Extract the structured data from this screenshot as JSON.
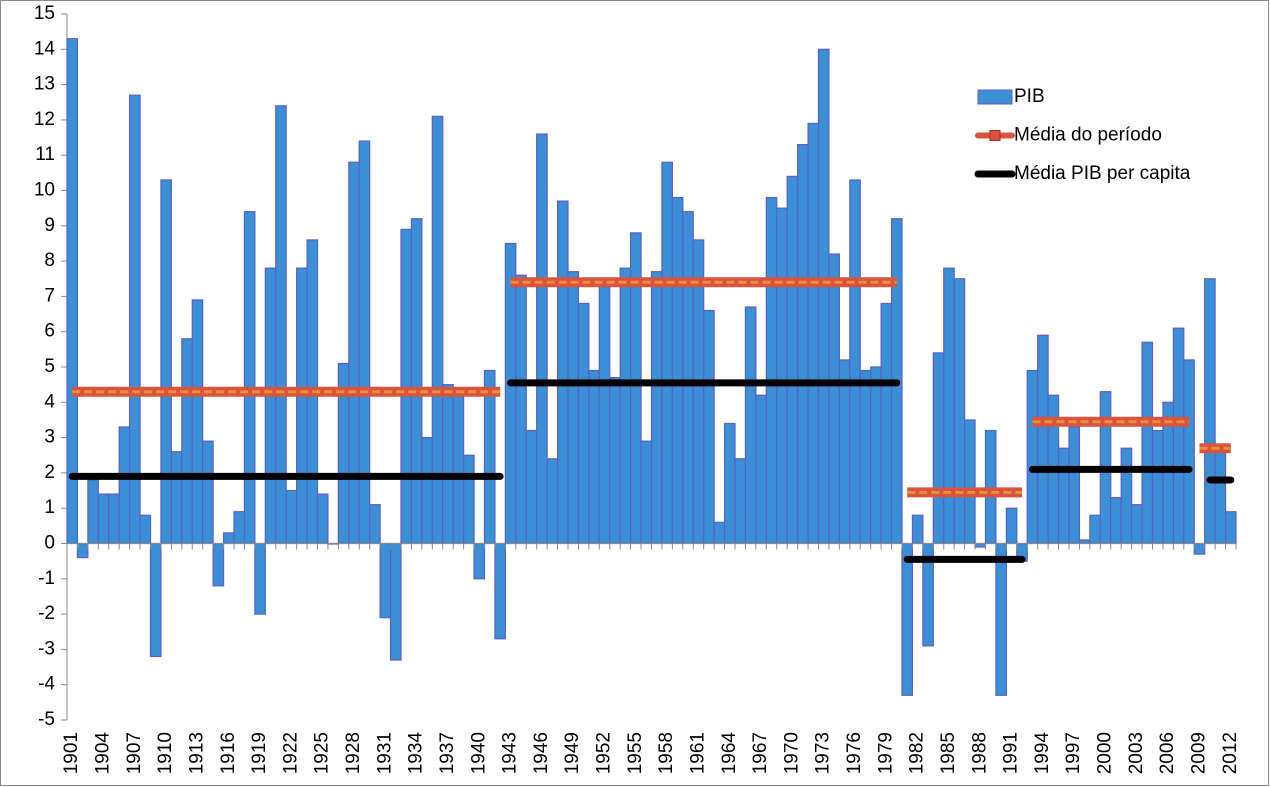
{
  "chart_data": {
    "type": "bar",
    "categories": [
      "1901",
      null,
      null,
      "1904",
      null,
      null,
      "1907",
      null,
      null,
      "1910",
      null,
      null,
      "1913",
      null,
      null,
      "1916",
      null,
      null,
      "1919",
      null,
      null,
      "1922",
      null,
      null,
      "1925",
      null,
      null,
      "1928",
      null,
      null,
      "1931",
      null,
      null,
      "1934",
      null,
      null,
      "1937",
      null,
      null,
      "1940",
      null,
      null,
      "1943",
      null,
      null,
      "1946",
      null,
      null,
      "1949",
      null,
      null,
      "1952",
      null,
      null,
      "1955",
      null,
      null,
      "1958",
      null,
      null,
      "1961",
      null,
      null,
      "1964",
      null,
      null,
      "1967",
      null,
      null,
      "1970",
      null,
      null,
      "1973",
      null,
      null,
      "1976",
      null,
      null,
      "1979",
      null,
      null,
      "1982",
      null,
      null,
      "1985",
      null,
      null,
      "1988",
      null,
      null,
      "1991",
      null,
      null,
      "1994",
      null,
      null,
      "1997",
      null,
      null,
      "2000",
      null,
      null,
      "2003",
      null,
      null,
      "2006",
      null,
      null,
      "2009",
      null,
      null,
      "2012"
    ],
    "series": [
      {
        "name": "PIB",
        "type": "bar",
        "color": "#3b8fd4",
        "values": [
          14.3,
          -0.4,
          1.8,
          1.4,
          1.4,
          3.3,
          12.7,
          0.8,
          -3.2,
          10.3,
          2.6,
          5.8,
          6.9,
          2.9,
          -1.2,
          0.3,
          0.9,
          9.4,
          -2.0,
          7.8,
          12.4,
          1.5,
          7.8,
          8.6,
          1.4,
          0.0,
          5.1,
          10.8,
          11.4,
          1.1,
          -2.1,
          -3.3,
          8.9,
          9.2,
          3.0,
          12.1,
          4.5,
          4.4,
          2.5,
          -1.0,
          4.9,
          -2.7,
          8.5,
          7.6,
          3.2,
          11.6,
          2.4,
          9.7,
          7.7,
          6.8,
          4.9,
          7.3,
          4.7,
          7.8,
          8.8,
          2.9,
          7.7,
          10.8,
          9.8,
          9.4,
          8.6,
          6.6,
          0.6,
          3.4,
          2.4,
          6.7,
          4.2,
          9.8,
          9.5,
          10.4,
          11.3,
          11.9,
          14.0,
          8.2,
          5.2,
          10.3,
          4.9,
          5.0,
          6.8,
          9.2,
          -4.3,
          0.8,
          -2.9,
          5.4,
          7.8,
          7.5,
          3.5,
          -0.1,
          3.2,
          -4.3,
          1.0,
          -0.5,
          4.9,
          5.9,
          4.2,
          2.7,
          3.3,
          0.1,
          0.8,
          4.3,
          1.3,
          2.7,
          1.1,
          5.7,
          3.2,
          4.0,
          6.1,
          5.2,
          -0.3,
          7.5,
          2.7,
          0.9
        ]
      },
      {
        "name": "Média do período",
        "type": "line",
        "color": "#d9533f",
        "marker": "square",
        "values": [
          4.3,
          4.3,
          4.3,
          4.3,
          4.3,
          4.3,
          4.3,
          4.3,
          4.3,
          4.3,
          4.3,
          4.3,
          4.3,
          4.3,
          4.3,
          4.3,
          4.3,
          4.3,
          4.3,
          4.3,
          4.3,
          4.3,
          4.3,
          4.3,
          4.3,
          4.3,
          4.3,
          4.3,
          4.3,
          4.3,
          4.3,
          4.3,
          4.3,
          4.3,
          4.3,
          4.3,
          4.3,
          4.3,
          4.3,
          4.3,
          4.3,
          4.3,
          7.4,
          7.4,
          7.4,
          7.4,
          7.4,
          7.4,
          7.4,
          7.4,
          7.4,
          7.4,
          7.4,
          7.4,
          7.4,
          7.4,
          7.4,
          7.4,
          7.4,
          7.4,
          7.4,
          7.4,
          7.4,
          7.4,
          7.4,
          7.4,
          7.4,
          7.4,
          7.4,
          7.4,
          7.4,
          7.4,
          7.4,
          7.4,
          7.4,
          7.4,
          7.4,
          7.4,
          7.4,
          7.4,
          1.45,
          1.45,
          1.45,
          1.45,
          1.45,
          1.45,
          1.45,
          1.45,
          1.45,
          1.45,
          1.45,
          1.45,
          3.45,
          3.45,
          3.45,
          3.45,
          3.45,
          3.45,
          3.45,
          3.45,
          3.45,
          3.45,
          3.45,
          3.45,
          3.45,
          3.45,
          3.45,
          3.45,
          2.7,
          2.7,
          2.7,
          2.7
        ]
      },
      {
        "name": "Média PIB per capita",
        "type": "line",
        "color": "#000000",
        "values": [
          1.9,
          1.9,
          1.9,
          1.9,
          1.9,
          1.9,
          1.9,
          1.9,
          1.9,
          1.9,
          1.9,
          1.9,
          1.9,
          1.9,
          1.9,
          1.9,
          1.9,
          1.9,
          1.9,
          1.9,
          1.9,
          1.9,
          1.9,
          1.9,
          1.9,
          1.9,
          1.9,
          1.9,
          1.9,
          1.9,
          1.9,
          1.9,
          1.9,
          1.9,
          1.9,
          1.9,
          1.9,
          1.9,
          1.9,
          1.9,
          1.9,
          1.9,
          4.55,
          4.55,
          4.55,
          4.55,
          4.55,
          4.55,
          4.55,
          4.55,
          4.55,
          4.55,
          4.55,
          4.55,
          4.55,
          4.55,
          4.55,
          4.55,
          4.55,
          4.55,
          4.55,
          4.55,
          4.55,
          4.55,
          4.55,
          4.55,
          4.55,
          4.55,
          4.55,
          4.55,
          4.55,
          4.55,
          4.55,
          4.55,
          4.55,
          4.55,
          4.55,
          4.55,
          4.55,
          4.55,
          -0.45,
          -0.45,
          -0.45,
          -0.45,
          -0.45,
          -0.45,
          -0.45,
          -0.45,
          -0.45,
          -0.45,
          -0.45,
          -0.45,
          2.1,
          2.1,
          2.1,
          2.1,
          2.1,
          2.1,
          2.1,
          2.1,
          2.1,
          2.1,
          2.1,
          2.1,
          2.1,
          2.1,
          2.1,
          2.1,
          null,
          1.8,
          1.8,
          1.8
        ]
      }
    ],
    "ylim": [
      -5,
      15
    ],
    "yticks": [
      -5,
      -4,
      -3,
      -2,
      -1,
      0,
      1,
      2,
      3,
      4,
      5,
      6,
      7,
      8,
      9,
      10,
      11,
      12,
      13,
      14,
      15
    ],
    "grid": false,
    "legend_position": "top-right"
  }
}
